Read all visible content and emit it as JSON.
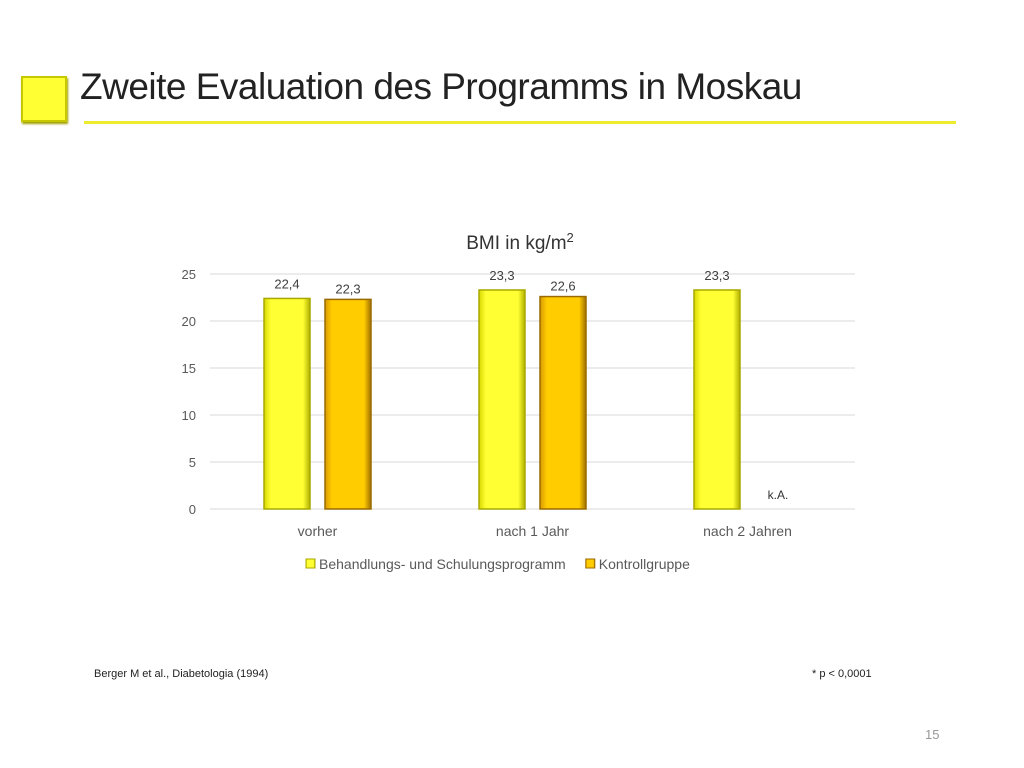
{
  "slide": {
    "title": "Zweite Evaluation des Programms in Moskau",
    "citation": "Berger M et al., Diabetologia (1994)",
    "footnote": "* p < 0,0001",
    "page_number": "15"
  },
  "colors": {
    "accent": "#ffff33",
    "series1": "#ffff33",
    "series2": "#ffcc00"
  },
  "chart_data": {
    "type": "bar",
    "title": "BMI in kg/m",
    "title_superscript": "2",
    "categories": [
      "vorher",
      "nach 1 Jahr",
      "nach 2 Jahren"
    ],
    "series": [
      {
        "name": "Behandlungs- und Schulungsprogramm",
        "values": [
          22.4,
          23.3,
          23.3
        ],
        "labels": [
          "22,4",
          "23,3",
          "23,3"
        ]
      },
      {
        "name": "Kontrollgruppe",
        "values": [
          22.3,
          22.6,
          null
        ],
        "labels": [
          "22,3",
          "22,6",
          "k.A."
        ]
      }
    ],
    "ylim": [
      0,
      25
    ],
    "yticks": [
      "0",
      "5",
      "10",
      "15",
      "20",
      "25"
    ],
    "grid": true,
    "legend_position": "bottom"
  }
}
